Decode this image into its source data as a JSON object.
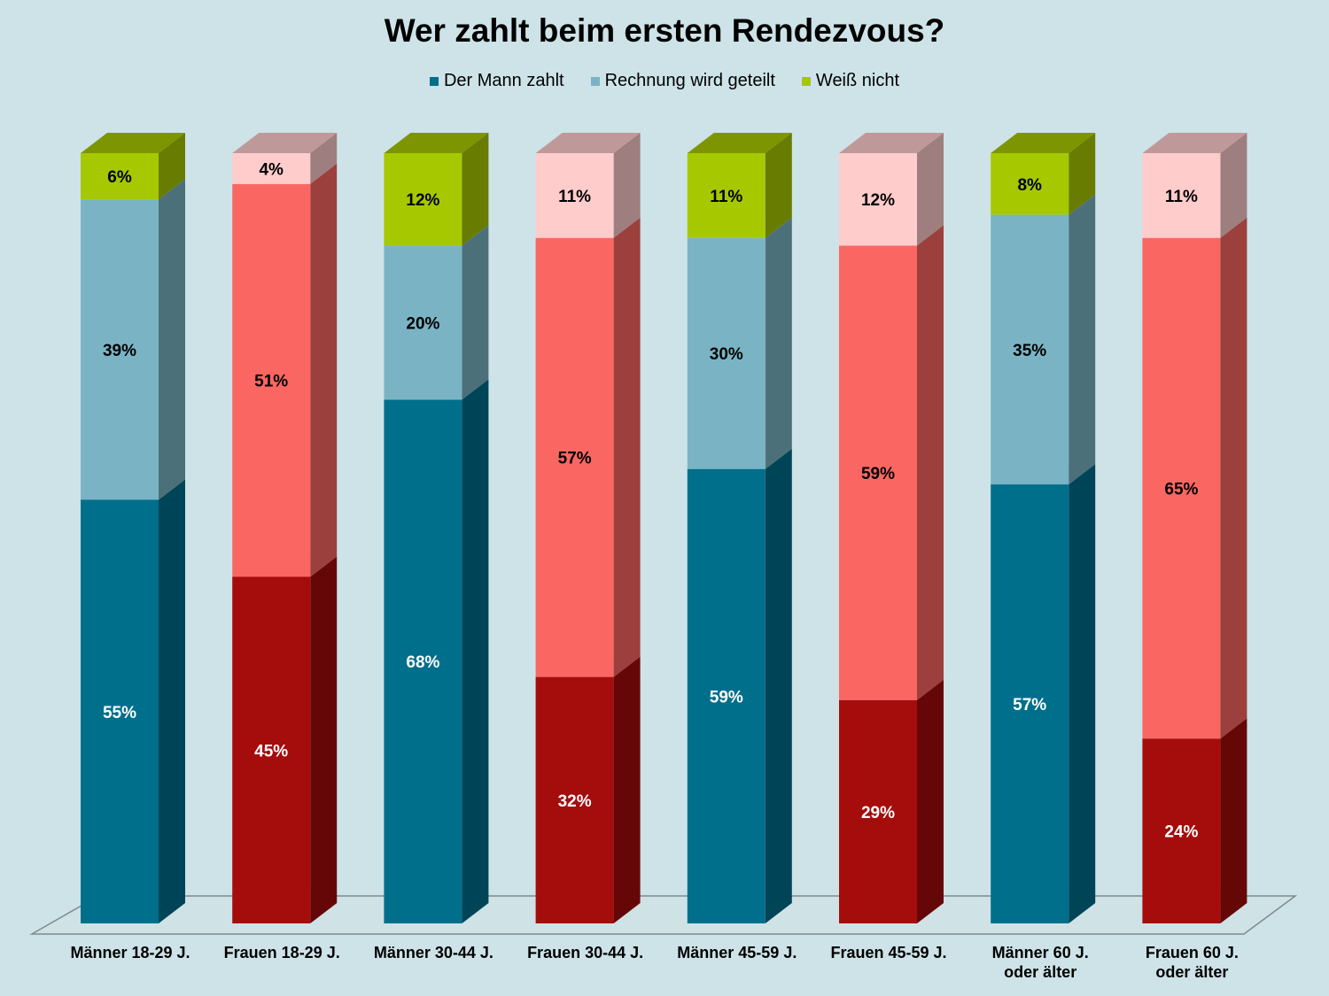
{
  "chart_data": {
    "type": "bar",
    "stacked": true,
    "three_d": true,
    "title": "Wer zahlt beim ersten Rendezvous?",
    "legend_position": "top",
    "legend": [
      {
        "name": "Der Mann zahlt",
        "color": "#006f8c"
      },
      {
        "name": "Rechnung wird geteilt",
        "color": "#7ab4c4"
      },
      {
        "name": "Weiß nicht",
        "color": "#a6c800"
      }
    ],
    "categories": [
      [
        "Männer 18-29 J."
      ],
      [
        "Frauen 18-29 J."
      ],
      [
        "Männer 30-44 J."
      ],
      [
        "Frauen 30-44 J."
      ],
      [
        "Männer 45-59 J."
      ],
      [
        "Frauen 45-59 J."
      ],
      [
        "Männer 60 J.",
        "oder älter"
      ],
      [
        "Frauen 60 J.",
        "oder älter"
      ]
    ],
    "series": [
      {
        "name": "Der Mann zahlt",
        "values": [
          55,
          45,
          68,
          32,
          59,
          29,
          57,
          24
        ]
      },
      {
        "name": "Rechnung wird geteilt",
        "values": [
          39,
          51,
          20,
          57,
          30,
          59,
          35,
          65
        ]
      },
      {
        "name": "Weiß nicht",
        "values": [
          6,
          4,
          12,
          11,
          11,
          12,
          8,
          11
        ]
      }
    ],
    "data_label_suffix": "%",
    "ylim": [
      0,
      100
    ],
    "palettes": {
      "maenner": [
        "#006f8c",
        "#7ab4c4",
        "#a6c800"
      ],
      "frauen": [
        "#a50c0c",
        "#fa6762",
        "#ffcccc"
      ]
    }
  }
}
